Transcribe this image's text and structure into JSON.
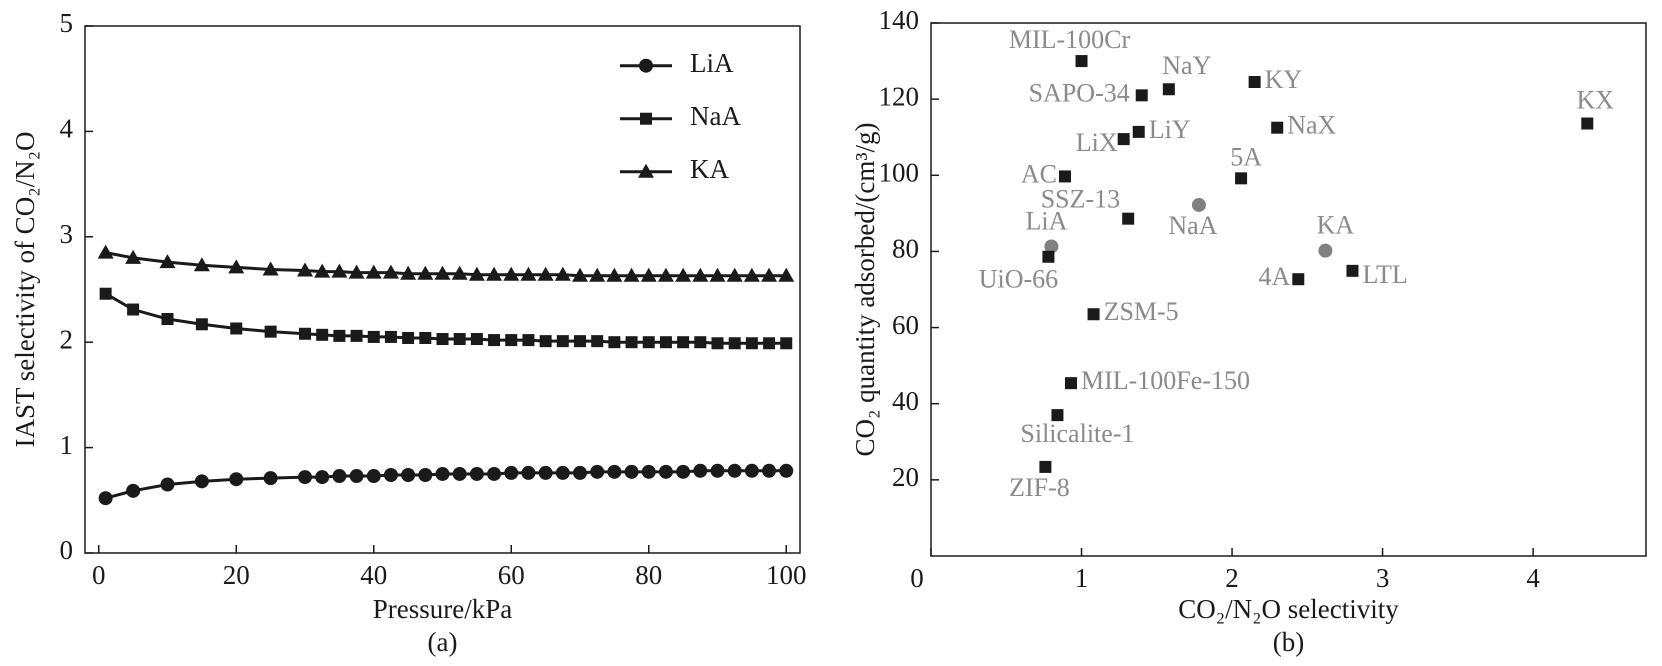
{
  "chart_data": [
    {
      "type": "line",
      "xlabel": "Pressure/kPa",
      "ylabel": "IAST selectivity of CO₂/N₂O",
      "caption": "(a)",
      "x": [
        1,
        5,
        10,
        15,
        20,
        25,
        30,
        32.5,
        35,
        37.5,
        40,
        42.5,
        45,
        47.5,
        50,
        52.5,
        55,
        57.5,
        60,
        62.5,
        65,
        67.5,
        70,
        72.5,
        75,
        77.5,
        80,
        82.5,
        85,
        87.5,
        90,
        92.5,
        95,
        97.5,
        100
      ],
      "series": [
        {
          "name": "LiA",
          "color": "#1a1a1a",
          "marker": "circle",
          "values": [
            0.52,
            0.59,
            0.65,
            0.68,
            0.7,
            0.71,
            0.72,
            0.72,
            0.73,
            0.73,
            0.73,
            0.74,
            0.74,
            0.74,
            0.75,
            0.75,
            0.75,
            0.75,
            0.76,
            0.76,
            0.76,
            0.76,
            0.76,
            0.77,
            0.77,
            0.77,
            0.77,
            0.77,
            0.77,
            0.78,
            0.78,
            0.78,
            0.78,
            0.78,
            0.78
          ]
        },
        {
          "name": "NaA",
          "color": "#1a1a1a",
          "marker": "square",
          "values": [
            2.46,
            2.31,
            2.22,
            2.17,
            2.13,
            2.1,
            2.08,
            2.07,
            2.06,
            2.06,
            2.05,
            2.05,
            2.04,
            2.04,
            2.03,
            2.03,
            2.03,
            2.02,
            2.02,
            2.02,
            2.01,
            2.01,
            2.01,
            2.01,
            2.0,
            2.0,
            2.0,
            2.0,
            2.0,
            2.0,
            1.99,
            1.99,
            1.99,
            1.99,
            1.99
          ]
        },
        {
          "name": "KA",
          "color": "#1a1a1a",
          "marker": "triangle",
          "values": [
            2.85,
            2.8,
            2.76,
            2.73,
            2.71,
            2.69,
            2.68,
            2.67,
            2.67,
            2.66,
            2.66,
            2.66,
            2.65,
            2.65,
            2.65,
            2.65,
            2.64,
            2.64,
            2.64,
            2.64,
            2.64,
            2.64,
            2.63,
            2.63,
            2.63,
            2.63,
            2.63,
            2.63,
            2.63,
            2.63,
            2.63,
            2.63,
            2.63,
            2.63,
            2.63
          ]
        }
      ],
      "xlim": [
        -2,
        102
      ],
      "xticks": [
        0,
        20,
        40,
        60,
        80,
        100
      ],
      "ylim": [
        0,
        5
      ],
      "yticks": [
        0,
        1,
        2,
        3,
        4,
        5
      ],
      "legend": "upper right"
    },
    {
      "type": "scatter",
      "xlabel": "CO₂/N₂O selectivity",
      "ylabel": "CO₂ quantity adsorbed/(cm³/g)",
      "caption": "(b)",
      "points": [
        {
          "label": "MIL-100Cr",
          "x": 1.0,
          "y": 130,
          "marker": "square",
          "color": "#1a1a1a"
        },
        {
          "label": "NaY",
          "x": 1.58,
          "y": 122.6,
          "marker": "square",
          "color": "#1a1a1a"
        },
        {
          "label": "SAPO-34",
          "x": 1.4,
          "y": 121,
          "marker": "square",
          "color": "#1a1a1a"
        },
        {
          "label": "KY",
          "x": 2.15,
          "y": 124.5,
          "marker": "square",
          "color": "#1a1a1a"
        },
        {
          "label": "NaX",
          "x": 2.3,
          "y": 112.5,
          "marker": "square",
          "color": "#1a1a1a"
        },
        {
          "label": "KX",
          "x": 4.36,
          "y": 113.6,
          "marker": "square",
          "color": "#1a1a1a"
        },
        {
          "label": "LiY",
          "x": 1.38,
          "y": 111.4,
          "marker": "square",
          "color": "#1a1a1a"
        },
        {
          "label": "LiX",
          "x": 1.28,
          "y": 109.5,
          "marker": "square",
          "color": "#1a1a1a"
        },
        {
          "label": "AC",
          "x": 0.89,
          "y": 99.7,
          "marker": "square",
          "color": "#1a1a1a"
        },
        {
          "label": "5A",
          "x": 2.06,
          "y": 99.2,
          "marker": "square",
          "color": "#1a1a1a"
        },
        {
          "label": "SSZ-13",
          "x": 1.31,
          "y": 88.6,
          "marker": "square",
          "color": "#1a1a1a"
        },
        {
          "label": "NaA",
          "x": 1.78,
          "y": 92.2,
          "marker": "circle",
          "color": "#808080"
        },
        {
          "label": "LiA",
          "x": 0.8,
          "y": 81.3,
          "marker": "circle",
          "color": "#808080"
        },
        {
          "label": "UiO-66",
          "x": 0.78,
          "y": 78.6,
          "marker": "square",
          "color": "#1a1a1a"
        },
        {
          "label": "KA",
          "x": 2.62,
          "y": 80.2,
          "marker": "circle",
          "color": "#808080"
        },
        {
          "label": "4A",
          "x": 2.44,
          "y": 72.7,
          "marker": "square",
          "color": "#1a1a1a"
        },
        {
          "label": "LTL",
          "x": 2.8,
          "y": 74.9,
          "marker": "square",
          "color": "#1a1a1a"
        },
        {
          "label": "ZSM-5",
          "x": 1.08,
          "y": 63.5,
          "marker": "square",
          "color": "#1a1a1a"
        },
        {
          "label": "MIL-100Fe-150",
          "x": 0.93,
          "y": 45.4,
          "marker": "square",
          "color": "#1a1a1a"
        },
        {
          "label": "Silicalite-1",
          "x": 0.84,
          "y": 37.0,
          "marker": "square",
          "color": "#1a1a1a"
        },
        {
          "label": "ZIF-8",
          "x": 0.76,
          "y": 23.4,
          "marker": "square",
          "color": "#1a1a1a"
        }
      ],
      "xlim": [
        0,
        4.75
      ],
      "xticks": [
        0,
        1,
        2,
        3,
        4
      ],
      "ylim": [
        0,
        140
      ],
      "yticks": [
        20,
        40,
        60,
        80,
        100,
        120,
        140
      ]
    }
  ]
}
